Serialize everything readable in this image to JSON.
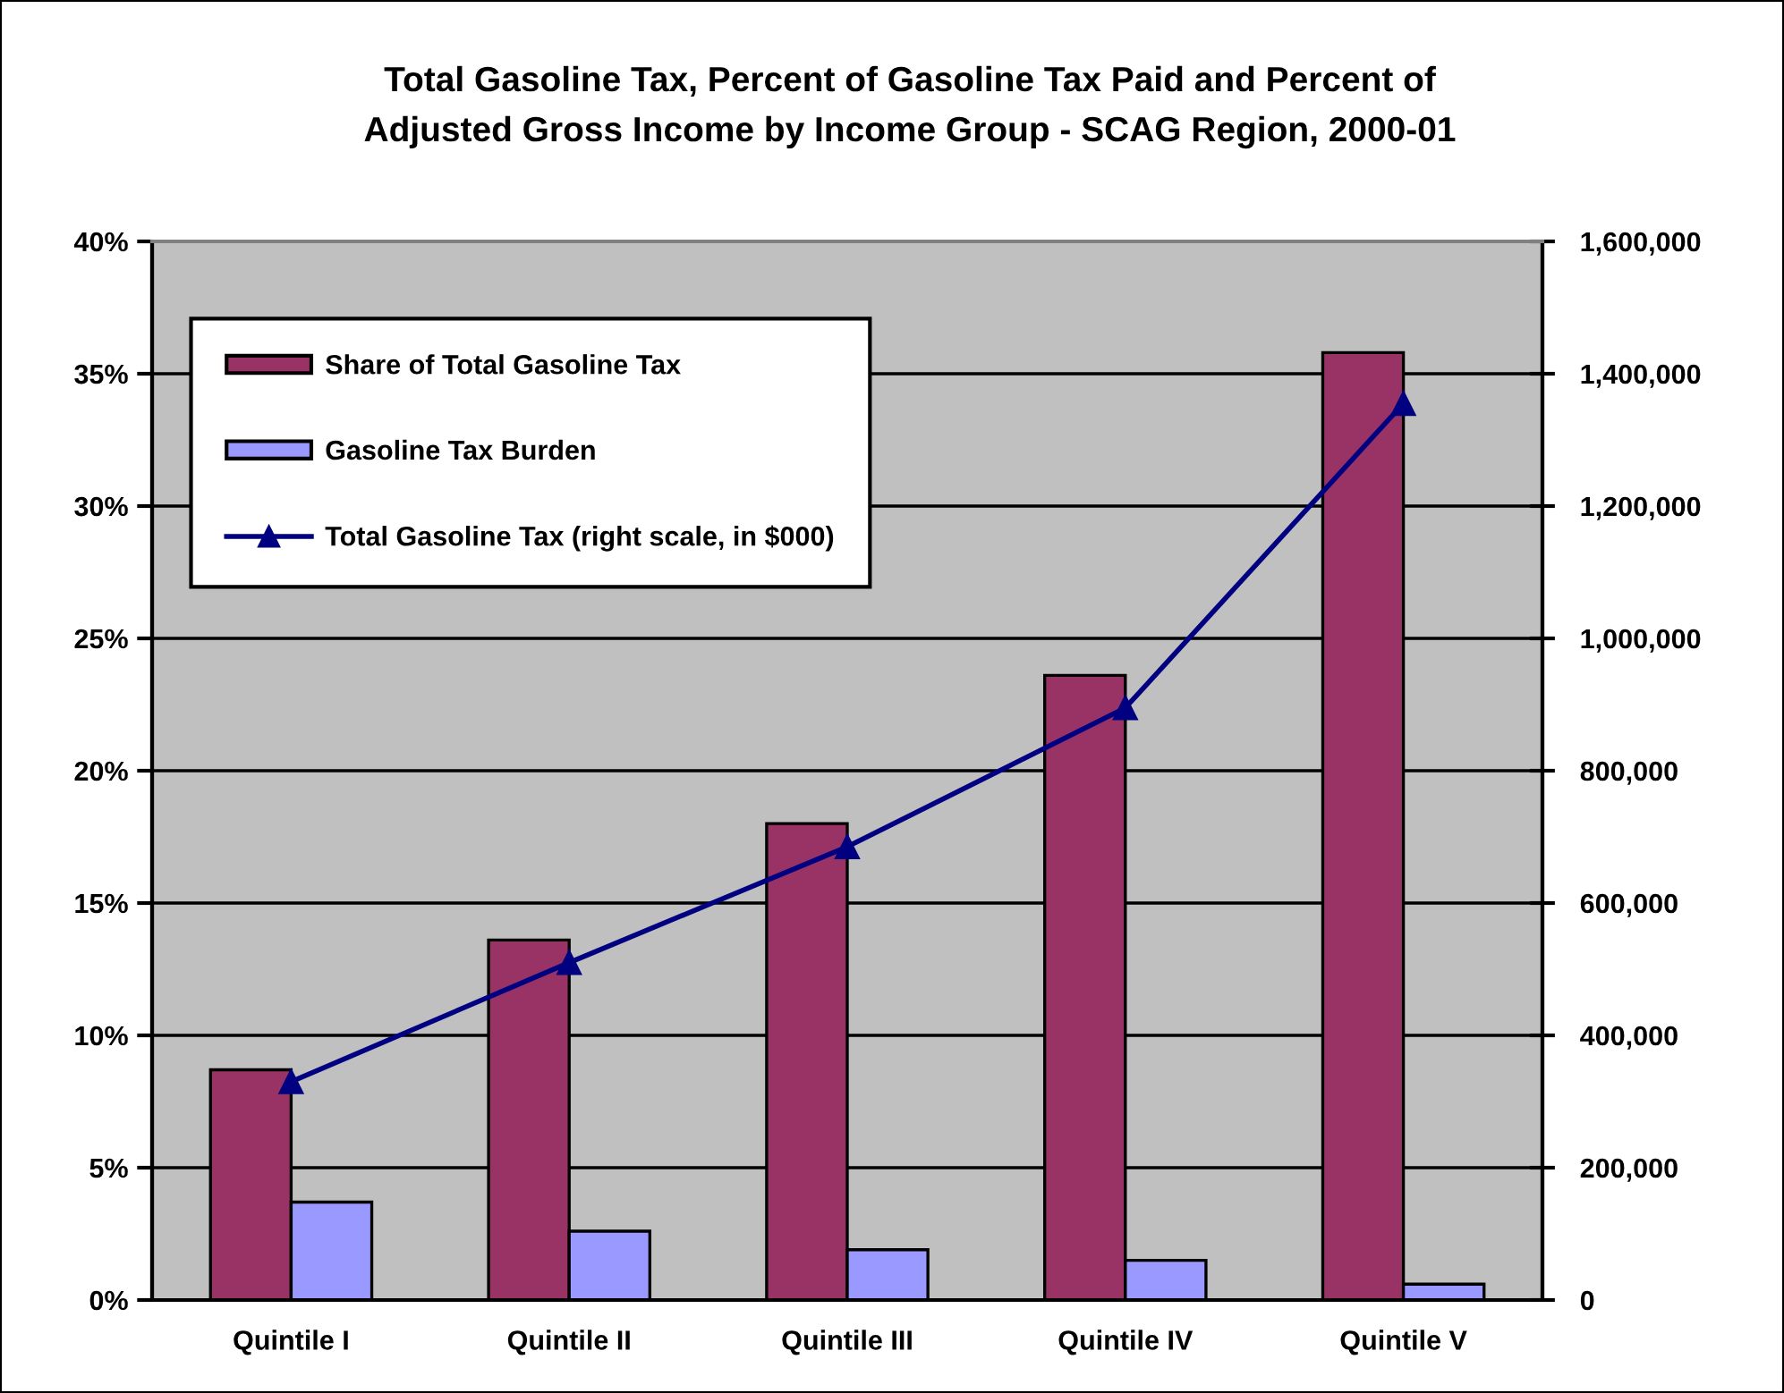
{
  "chart_data": {
    "type": "bar",
    "title": "Total Gasoline Tax, Percent of Gasoline Tax Paid and Percent of\nAdjusted Gross Income by Income Group - SCAG Region, 2000-01",
    "categories": [
      "Quintile I",
      "Quintile II",
      "Quintile III",
      "Quintile IV",
      "Quintile V"
    ],
    "series": [
      {
        "name": "Share of Total Gasoline Tax",
        "color": "#993366",
        "values": [
          8.7,
          13.6,
          18.0,
          23.6,
          35.8
        ]
      },
      {
        "name": "Gasoline Tax Burden",
        "color": "#9999ff",
        "values": [
          3.7,
          2.6,
          1.9,
          1.5,
          0.6
        ]
      },
      {
        "name": "Total Gasoline Tax (right scale, in $000)",
        "type": "line",
        "axis": "y2",
        "color": "#000080",
        "values": [
          330000,
          510000,
          685000,
          895000,
          1355000
        ]
      }
    ],
    "ylim": [
      0,
      40
    ],
    "yticks": [
      {
        "value": 0,
        "label": "0%"
      },
      {
        "value": 5,
        "label": "5%"
      },
      {
        "value": 10,
        "label": "10%"
      },
      {
        "value": 15,
        "label": "15%"
      },
      {
        "value": 20,
        "label": "20%"
      },
      {
        "value": 25,
        "label": "25%"
      },
      {
        "value": 30,
        "label": "30%"
      },
      {
        "value": 35,
        "label": "35%"
      },
      {
        "value": 40,
        "label": "40%"
      }
    ],
    "y2lim": [
      0,
      1600000
    ],
    "y2ticks": [
      0,
      {
        "value": 200000,
        "label": "200,000"
      },
      {
        "value": 400000,
        "label": "400,000"
      },
      {
        "value": 600000,
        "label": "600,000"
      },
      {
        "value": 800000,
        "label": "800,000"
      },
      {
        "value": 1000000,
        "label": "1,000,000"
      },
      {
        "value": 1200000,
        "label": "1,200,000"
      },
      {
        "value": 1400000,
        "label": "1,400,000"
      },
      {
        "value": 1600000,
        "label": "1,600,000"
      }
    ],
    "grid": true,
    "legend": "top left",
    "marker": "triangle"
  }
}
